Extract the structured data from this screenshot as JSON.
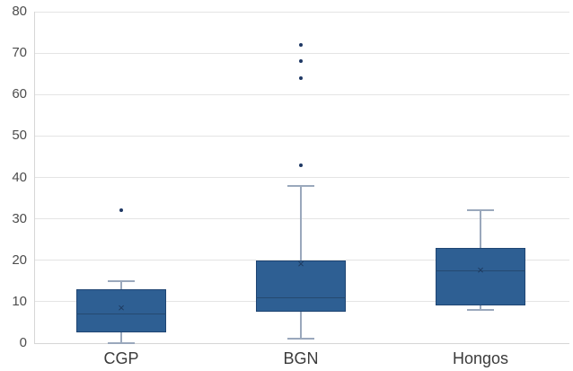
{
  "chart_data": {
    "type": "boxplot",
    "title": "",
    "xlabel": "",
    "ylabel": "",
    "categories": [
      "CGP",
      "BGN",
      "Hongos"
    ],
    "series": [
      {
        "name": "CGP",
        "whisker_low": 0,
        "q1": 2.5,
        "median": 7,
        "q3": 13,
        "whisker_high": 15,
        "mean": 8.5,
        "outliers": [
          32
        ]
      },
      {
        "name": "BGN",
        "whisker_low": 1,
        "q1": 7.5,
        "median": 11,
        "q3": 20,
        "whisker_high": 38,
        "mean": 19,
        "outliers": [
          43,
          64,
          68,
          72
        ]
      },
      {
        "name": "Hongos",
        "whisker_low": 8,
        "q1": 9,
        "median": 17.5,
        "q3": 23,
        "whisker_high": 32,
        "mean": 17.5,
        "outliers": []
      }
    ],
    "ylim": [
      0,
      80
    ],
    "yticks": [
      0,
      10,
      20,
      30,
      40,
      50,
      60,
      70,
      80
    ],
    "grid": "horizontal",
    "legend": "none",
    "mean_glyph": "×"
  },
  "colors": {
    "background": "#FFFFFF",
    "box_fill": "#2E5F93",
    "box_border": "#1F4573",
    "median_line": "#254970",
    "whisker": "#9AA8BC",
    "mean_marker": "#1E3A5F",
    "outlier_dot": "#1F3864",
    "gridline": "#E4E4E4",
    "axis_line": "#D6D6D6",
    "tick_label": "#4D4D4D",
    "category_label": "#3B3B3B"
  }
}
